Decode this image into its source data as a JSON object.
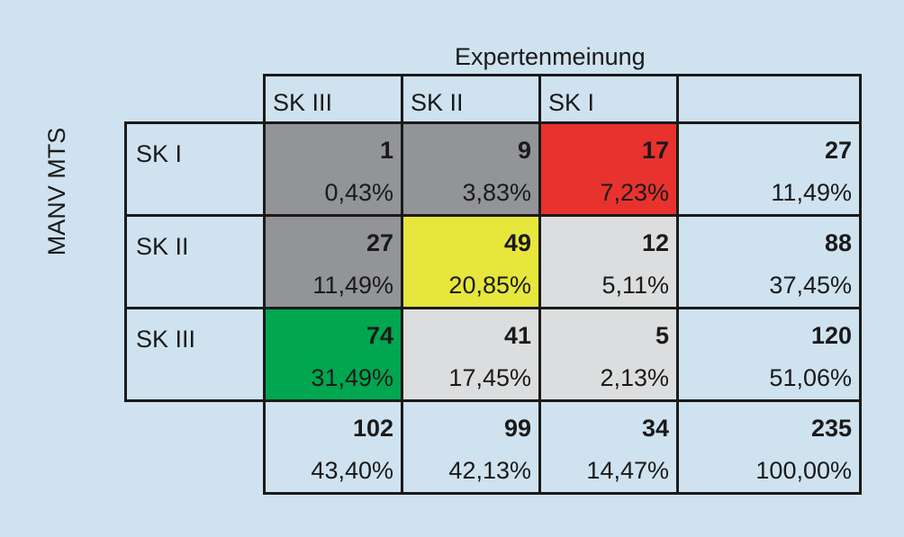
{
  "chart_data": {
    "type": "table",
    "column_title": "Expertenmeinung",
    "row_title": "MANV MTS",
    "columns": [
      "SK III",
      "SK II",
      "SK I"
    ],
    "rows": [
      {
        "label": "SK I",
        "cells": [
          {
            "count": "1",
            "percent": "0,43%",
            "color": "#929497"
          },
          {
            "count": "9",
            "percent": "3,83%",
            "color": "#929497"
          },
          {
            "count": "17",
            "percent": "7,23%",
            "color": "#e8322e"
          }
        ],
        "total": {
          "count": "27",
          "percent": "11,49%"
        }
      },
      {
        "label": "SK II",
        "cells": [
          {
            "count": "27",
            "percent": "11,49%",
            "color": "#929497"
          },
          {
            "count": "49",
            "percent": "20,85%",
            "color": "#e6e63c"
          },
          {
            "count": "12",
            "percent": "5,11%",
            "color": "#dcddde"
          }
        ],
        "total": {
          "count": "88",
          "percent": "37,45%"
        }
      },
      {
        "label": "SK III",
        "cells": [
          {
            "count": "74",
            "percent": "31,49%",
            "color": "#00a650"
          },
          {
            "count": "41",
            "percent": "17,45%",
            "color": "#dcddde"
          },
          {
            "count": "5",
            "percent": "2,13%",
            "color": "#dcddde"
          }
        ],
        "total": {
          "count": "120",
          "percent": "51,06%"
        }
      }
    ],
    "column_totals": [
      {
        "count": "102",
        "percent": "43,40%"
      },
      {
        "count": "99",
        "percent": "42,13%"
      },
      {
        "count": "34",
        "percent": "14,47%"
      }
    ],
    "grand_total": {
      "count": "235",
      "percent": "100,00%"
    }
  },
  "colors": {
    "background": "#cfe2ef",
    "border": "#1a1a1a"
  }
}
